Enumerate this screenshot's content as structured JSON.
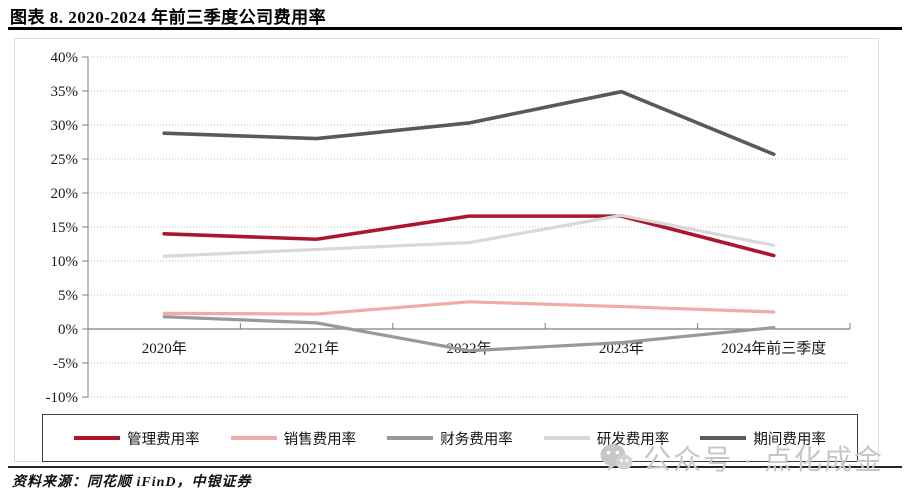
{
  "header": {
    "title": "图表 8. 2020-2024 年前三季度公司费用率"
  },
  "footer": {
    "source": "资料来源：同花顺 iFinD，中银证券"
  },
  "watermark": {
    "icon": "wechat-icon",
    "label": "公众号 · 点化成金"
  },
  "colors": {
    "management_red": "#ac162c",
    "sales_pink": "#efaba8",
    "finance_gray": "#999999",
    "rnd_lightgray": "#d8d8d8",
    "period_darkgray": "#595959",
    "gridline": "#bfbfbf",
    "axis": "#808080",
    "frame": "#d9d9d9",
    "watermark_gray": "#c7c7c7"
  },
  "chart_data": {
    "type": "line",
    "title": "2020-2024 年前三季度公司费用率",
    "categories": [
      "2020年",
      "2021年",
      "2022年",
      "2023年",
      "2024年前三季度"
    ],
    "series": [
      {
        "name": "管理费用率",
        "color": "#ac162c",
        "values": [
          14.0,
          13.2,
          16.6,
          16.6,
          10.8
        ]
      },
      {
        "name": "销售费用率",
        "color": "#efaba8",
        "values": [
          2.3,
          2.2,
          4.0,
          3.3,
          2.5
        ]
      },
      {
        "name": "财务费用率",
        "color": "#999999",
        "values": [
          1.8,
          0.9,
          -3.2,
          -2.0,
          0.2
        ]
      },
      {
        "name": "研发费用率",
        "color": "#d8d8d8",
        "values": [
          10.7,
          11.7,
          12.7,
          16.7,
          12.3
        ]
      },
      {
        "name": "期间费用率",
        "color": "#595959",
        "values": [
          28.8,
          28.0,
          30.3,
          34.9,
          25.7
        ]
      }
    ],
    "xlabel": "",
    "ylabel": "",
    "ylim": [
      -10,
      40
    ],
    "ytick_step": 5,
    "ytick_labels": [
      "40%",
      "35%",
      "30%",
      "25%",
      "20%",
      "15%",
      "10%",
      "5%",
      "0%",
      "-5%",
      "-10%"
    ],
    "grid": true,
    "gridline_style": "dotted",
    "legend_position": "bottom"
  }
}
